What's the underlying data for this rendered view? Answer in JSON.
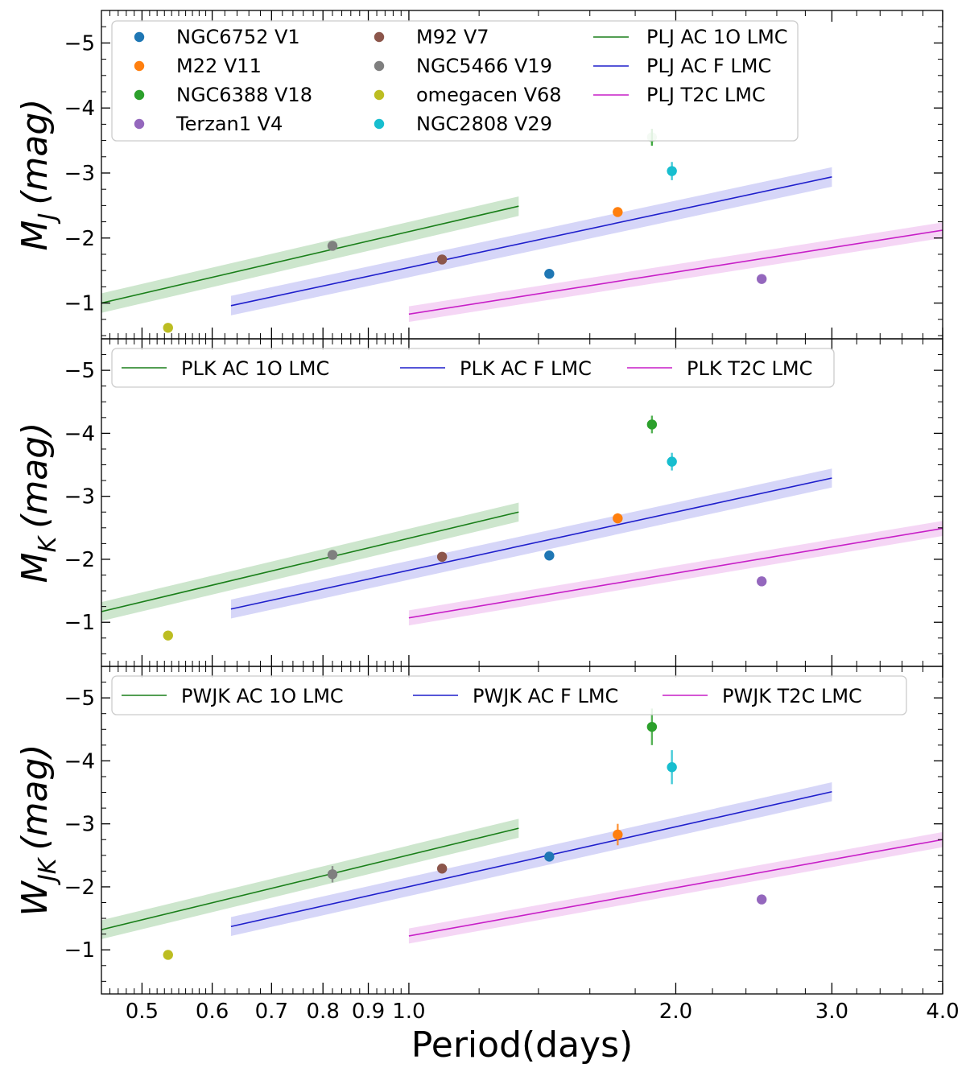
{
  "chart_data": {
    "type": "scatter",
    "shared_x": {
      "label": "Period(days)",
      "scale": "log",
      "xlim": [
        0.45,
        4.0
      ],
      "tick_values": [
        0.5,
        0.6,
        0.7,
        0.8,
        0.9,
        1.0,
        2.0,
        3.0,
        4.0
      ],
      "tick_labels": [
        "0.5",
        "0.6",
        "0.7",
        "0.8",
        "0.9",
        "1.0",
        "2.0",
        "3.0",
        "4.0"
      ]
    },
    "star_colors": {
      "NGC6752 V1": "#1f77b4",
      "M22 V11": "#ff7f0e",
      "NGC6388 V18": "#2ca02c",
      "Terzan1 V4": "#9467bd",
      "M92 V7": "#8c564b",
      "NGC5466 V19": "#7f7f7f",
      "omegacen V68": "#bcbd22",
      "NGC2808 V29": "#17becf"
    },
    "line_colors": {
      "AC 1O": "#1a7f1a",
      "AC F": "#1f1fcc",
      "T2C": "#c71fc7"
    },
    "band_colors": {
      "AC 1O": "#c8e3c8",
      "AC F": "#d2d2f7",
      "T2C": "#f4d2f4"
    },
    "panels": [
      {
        "id": "J",
        "ylabel": "M",
        "ylabel_sub": "J",
        "ylabel_unit": "(mag)",
        "ylim": [
          -0.45,
          -5.5
        ],
        "yticks": [
          -1,
          -2,
          -3,
          -4,
          -5
        ],
        "ytick_labels": [
          "−1",
          "−2",
          "−3",
          "−4",
          "−5"
        ],
        "legend_columns": 3,
        "legend": [
          {
            "label": "NGC6752 V1",
            "kind": "marker",
            "key": "NGC6752 V1"
          },
          {
            "label": "M22 V11",
            "kind": "marker",
            "key": "M22 V11"
          },
          {
            "label": "NGC6388 V18",
            "kind": "marker",
            "key": "NGC6388 V18"
          },
          {
            "label": "Terzan1 V4",
            "kind": "marker",
            "key": "Terzan1 V4"
          },
          {
            "label": "M92 V7",
            "kind": "marker",
            "key": "M92 V7"
          },
          {
            "label": "NGC5466 V19",
            "kind": "marker",
            "key": "NGC5466 V19"
          },
          {
            "label": "omegacen V68",
            "kind": "marker",
            "key": "omegacen V68"
          },
          {
            "label": "NGC2808 V29",
            "kind": "marker",
            "key": "NGC2808 V29"
          },
          {
            "label": "PLJ AC 1O LMC",
            "kind": "line",
            "key": "AC 1O"
          },
          {
            "label": "PLJ AC F LMC",
            "kind": "line",
            "key": "AC F"
          },
          {
            "label": "PLJ T2C LMC",
            "kind": "line",
            "key": "T2C"
          }
        ],
        "points": [
          {
            "name": "NGC6752 V1",
            "x": 1.44,
            "y": -1.45,
            "err": 0.03
          },
          {
            "name": "M22 V11",
            "x": 1.72,
            "y": -2.4,
            "err": 0.06
          },
          {
            "name": "NGC6388 V18",
            "x": 1.88,
            "y": -3.55,
            "err": 0.13,
            "faded": true
          },
          {
            "name": "Terzan1 V4",
            "x": 2.5,
            "y": -1.37,
            "err": 0.03
          },
          {
            "name": "M92 V7",
            "x": 1.09,
            "y": -1.67,
            "err": 0.03
          },
          {
            "name": "NGC5466 V19",
            "x": 0.82,
            "y": -1.88,
            "err": 0.03
          },
          {
            "name": "omegacen V68",
            "x": 0.535,
            "y": -0.62,
            "err": 0.03
          },
          {
            "name": "NGC2808 V29",
            "x": 1.98,
            "y": -3.03,
            "err": 0.14
          }
        ],
        "relations": [
          {
            "key": "AC 1O",
            "x": [
              0.45,
              1.33
            ],
            "y": [
              -1.0,
              -2.49
            ],
            "sigma": 0.15
          },
          {
            "key": "AC F",
            "x": [
              0.63,
              3.0
            ],
            "y": [
              -0.96,
              -2.94
            ],
            "sigma": 0.15
          },
          {
            "key": "T2C",
            "x": [
              1.0,
              4.0
            ],
            "y": [
              -0.83,
              -2.12
            ],
            "sigma": 0.12
          }
        ]
      },
      {
        "id": "K",
        "ylabel": "M",
        "ylabel_sub": "K",
        "ylabel_unit": "(mag)",
        "ylim": [
          -0.3,
          -5.5
        ],
        "yticks": [
          -1,
          -2,
          -3,
          -4,
          -5
        ],
        "ytick_labels": [
          "−1",
          "−2",
          "−3",
          "−4",
          "−5"
        ],
        "legend_columns": 3,
        "legend": [
          {
            "label": "PLK AC 1O LMC",
            "kind": "line",
            "key": "AC 1O"
          },
          {
            "label": "PLK AC F LMC",
            "kind": "line",
            "key": "AC F"
          },
          {
            "label": "PLK T2C LMC",
            "kind": "line",
            "key": "T2C"
          }
        ],
        "points": [
          {
            "name": "NGC6752 V1",
            "x": 1.44,
            "y": -2.06,
            "err": 0.03
          },
          {
            "name": "M22 V11",
            "x": 1.72,
            "y": -2.65,
            "err": 0.08
          },
          {
            "name": "NGC6388 V18",
            "x": 1.88,
            "y": -4.14,
            "err": 0.14
          },
          {
            "name": "Terzan1 V4",
            "x": 2.5,
            "y": -1.65,
            "err": 0.03
          },
          {
            "name": "M92 V7",
            "x": 1.09,
            "y": -2.04,
            "err": 0.03
          },
          {
            "name": "NGC5466 V19",
            "x": 0.82,
            "y": -2.07,
            "err": 0.03
          },
          {
            "name": "omegacen V68",
            "x": 0.535,
            "y": -0.79,
            "err": 0.03
          },
          {
            "name": "NGC2808 V29",
            "x": 1.98,
            "y": -3.55,
            "err": 0.14
          }
        ],
        "relations": [
          {
            "key": "AC 1O",
            "x": [
              0.45,
              1.33
            ],
            "y": [
              -1.17,
              -2.75
            ],
            "sigma": 0.15
          },
          {
            "key": "AC F",
            "x": [
              0.63,
              3.0
            ],
            "y": [
              -1.21,
              -3.29
            ],
            "sigma": 0.15
          },
          {
            "key": "T2C",
            "x": [
              1.0,
              4.0
            ],
            "y": [
              -1.07,
              -2.49
            ],
            "sigma": 0.12
          }
        ]
      },
      {
        "id": "WJK",
        "ylabel": "W",
        "ylabel_sub": "JK",
        "ylabel_unit": "(mag)",
        "ylim": [
          -0.3,
          -5.5
        ],
        "yticks": [
          -1,
          -2,
          -3,
          -4,
          -5
        ],
        "ytick_labels": [
          "−1",
          "−2",
          "−3",
          "−4",
          "−5"
        ],
        "legend_columns": 3,
        "legend": [
          {
            "label": "PWJK AC 1O LMC",
            "kind": "line",
            "key": "AC 1O"
          },
          {
            "label": "PWJK AC F LMC",
            "kind": "line",
            "key": "AC F"
          },
          {
            "label": "PWJK T2C LMC",
            "kind": "line",
            "key": "T2C"
          }
        ],
        "points": [
          {
            "name": "NGC6752 V1",
            "x": 1.44,
            "y": -2.48,
            "err": 0.04
          },
          {
            "name": "M22 V11",
            "x": 1.72,
            "y": -2.83,
            "err": 0.17
          },
          {
            "name": "NGC6388 V18",
            "x": 1.88,
            "y": -4.54,
            "err": 0.29
          },
          {
            "name": "Terzan1 V4",
            "x": 2.5,
            "y": -1.8,
            "err": 0.06
          },
          {
            "name": "M92 V7",
            "x": 1.09,
            "y": -2.29,
            "err": 0.04
          },
          {
            "name": "NGC5466 V19",
            "x": 0.82,
            "y": -2.2,
            "err": 0.13
          },
          {
            "name": "omegacen V68",
            "x": 0.535,
            "y": -0.92,
            "err": 0.04
          },
          {
            "name": "NGC2808 V29",
            "x": 1.98,
            "y": -3.9,
            "err": 0.27
          }
        ],
        "relations": [
          {
            "key": "AC 1O",
            "x": [
              0.45,
              1.33
            ],
            "y": [
              -1.32,
              -2.93
            ],
            "sigma": 0.15
          },
          {
            "key": "AC F",
            "x": [
              0.63,
              3.0
            ],
            "y": [
              -1.37,
              -3.51
            ],
            "sigma": 0.15
          },
          {
            "key": "T2C",
            "x": [
              1.0,
              4.0
            ],
            "y": [
              -1.22,
              -2.75
            ],
            "sigma": 0.12
          }
        ]
      }
    ]
  }
}
